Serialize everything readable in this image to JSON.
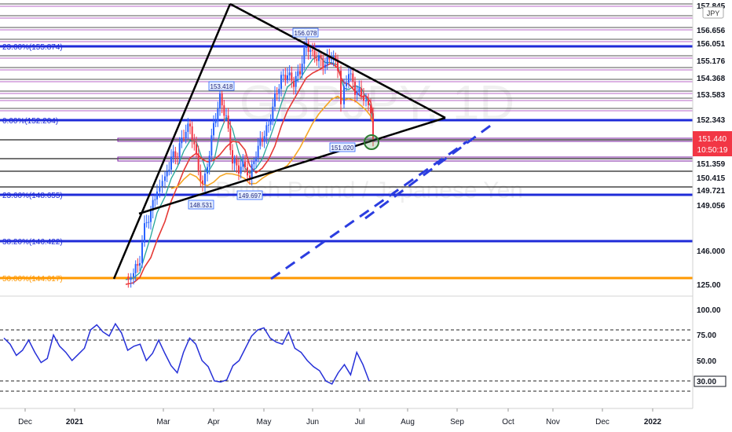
{
  "symbol": {
    "currency_badge": "JPY",
    "watermark": "GBPJPY, 1D",
    "watermark_sub": "British Pound / Japanese Yen"
  },
  "colors": {
    "bg": "#ffffff",
    "candle_up": "#2962ff",
    "candle_down": "#f23645",
    "ema_fast": "#26a69a",
    "ema_mid": "#e53935",
    "ema_slow": "#f5a623",
    "fib_blue": "#1e2bd8",
    "fib_orange": "#ff9800",
    "trendline": "#000000",
    "dash_channel": "#2b3de0",
    "rsi_line": "#2630d8",
    "last_price_bg": "#f23645",
    "accent_ring": "#2e7d32"
  },
  "price_axis": {
    "ticks": [
      "157.845",
      "156.656",
      "156.051",
      "155.176",
      "154.368",
      "153.583",
      "152.343",
      "151.359",
      "150.415",
      "149.721",
      "149.056",
      "146.000",
      "125.00"
    ],
    "last_price": "151.440",
    "countdown": "10:50:19"
  },
  "time_axis": {
    "labels": [
      "Dec",
      "2021",
      "Mar",
      "Apr",
      "May",
      "Jun",
      "Jul",
      "Aug",
      "Sep",
      "Oct",
      "Nov",
      "Dec",
      "2022"
    ]
  },
  "fib_levels": [
    {
      "label": "23.60%(155.874)",
      "value": 155.874
    },
    {
      "label": "0.00%(152.204)",
      "value": 152.204
    },
    {
      "label": "23.60%(148.655)",
      "value": 148.655
    },
    {
      "label": "38.20%(146.422)",
      "value": 146.422
    },
    {
      "label": "50.00%(144.617)",
      "value": 144.617
    }
  ],
  "callouts": [
    "156.078",
    "153.418",
    "148.531",
    "149.697",
    "151.020"
  ],
  "rsi": {
    "ticks": [
      "100.00",
      "75.00",
      "50.00",
      "30.00"
    ],
    "current": "30.00",
    "levels": [
      80,
      70,
      30,
      20
    ]
  },
  "chart_data": {
    "type": "candlestick",
    "title": "",
    "xlabel": "",
    "ylabel": "",
    "period": "2021-01 to 2021-07",
    "price_range": [
      144.6,
      157.9
    ],
    "swing_points": [
      {
        "date": "2021-04",
        "value": 153.418
      },
      {
        "date": "2021-04",
        "value": 148.531
      },
      {
        "date": "2021-05",
        "value": 149.697
      },
      {
        "date": "2021-06",
        "value": 156.078
      },
      {
        "date": "2021-06",
        "value": 151.02
      }
    ],
    "rsi_series_approx": [
      72,
      66,
      55,
      60,
      70,
      58,
      48,
      52,
      75,
      64,
      58,
      50,
      56,
      62,
      80,
      85,
      78,
      74,
      86,
      77,
      60,
      64,
      66,
      50,
      57,
      70,
      57,
      45,
      38,
      58,
      72,
      66,
      50,
      44,
      30,
      29,
      31,
      45,
      50,
      62,
      74,
      80,
      82,
      72,
      68,
      66,
      78,
      62,
      58,
      50,
      44,
      40,
      30,
      27,
      38,
      46,
      36,
      58,
      46,
      30
    ]
  }
}
